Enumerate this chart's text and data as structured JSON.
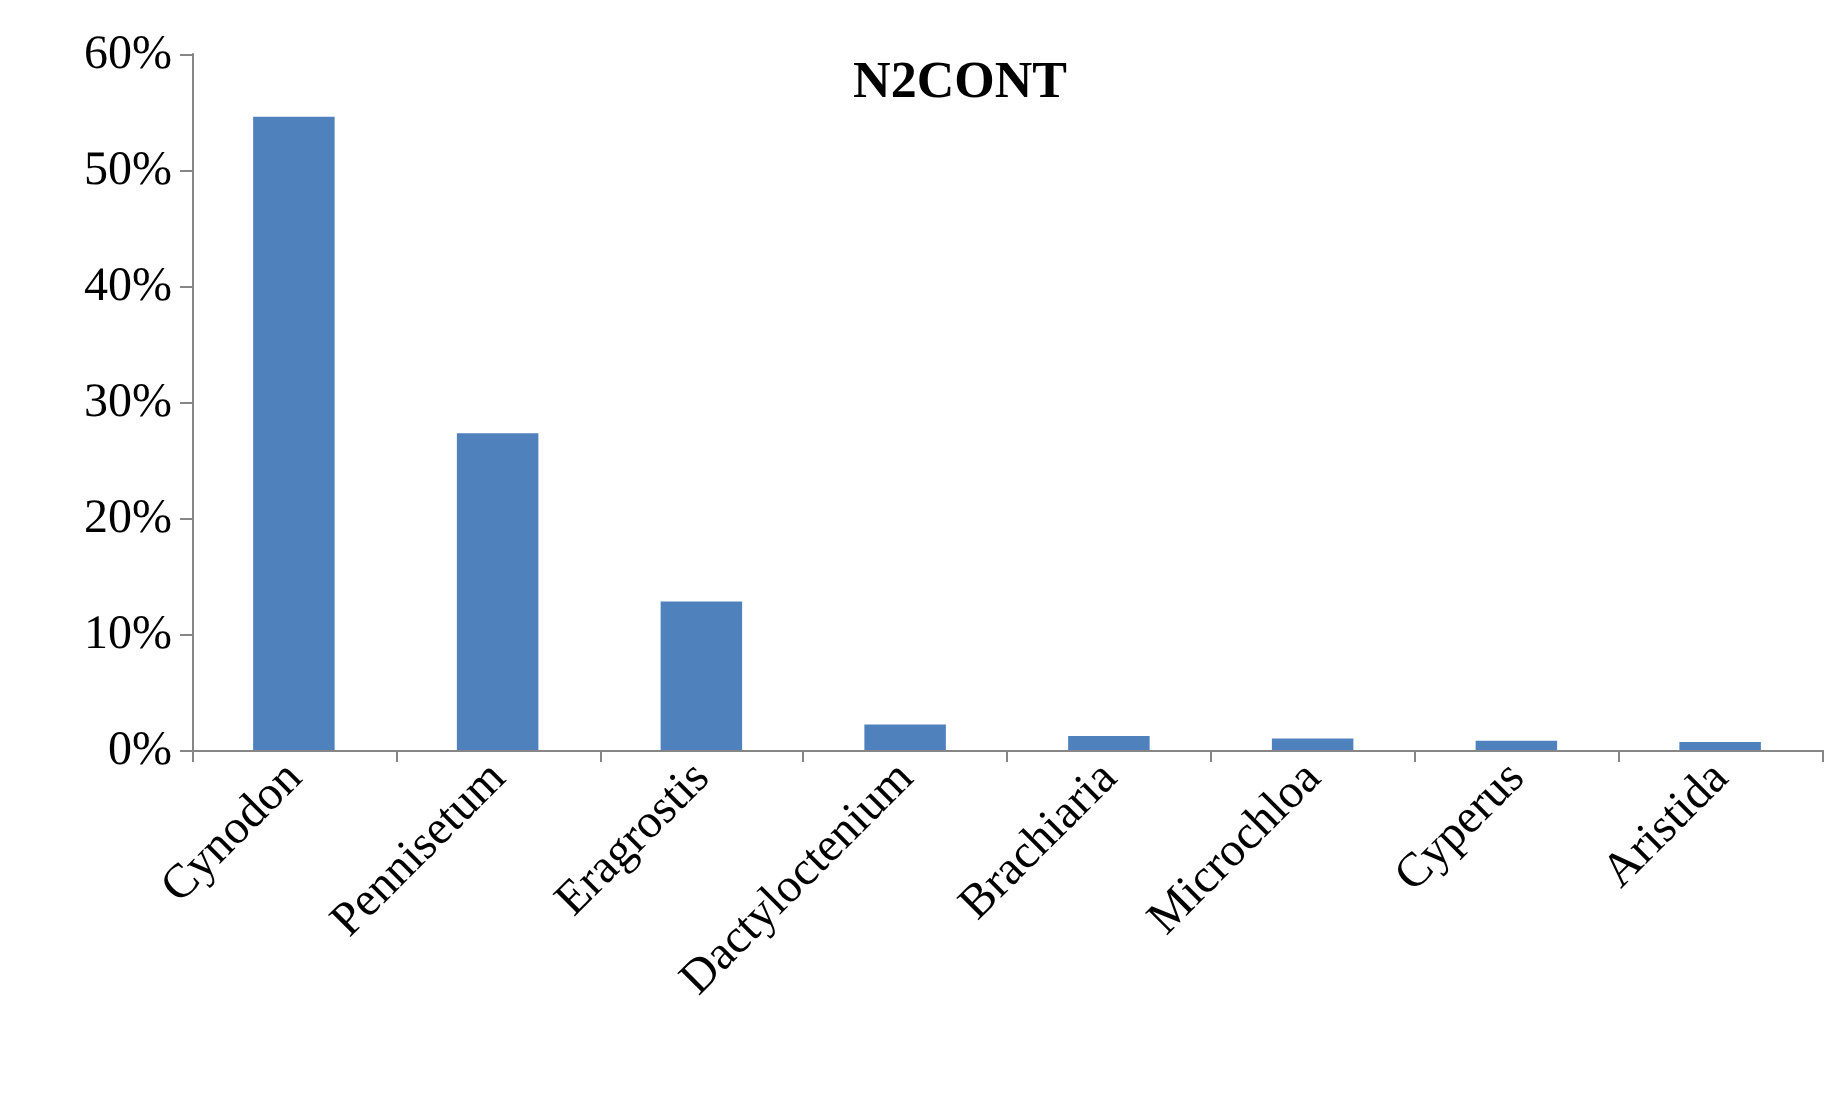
{
  "chart_data": {
    "type": "bar",
    "title": "N2CONT",
    "categories": [
      "Cynodon",
      "Pennisetum",
      "Eragrostis",
      "Dactyloctenium",
      "Brachiaria",
      "Microchloa",
      "Cyperus",
      "Aristida"
    ],
    "values": [
      54.6,
      27.3,
      12.8,
      2.2,
      1.2,
      1.0,
      0.8,
      0.7
    ],
    "color": "#4f81bd",
    "ylim": [
      0,
      60
    ],
    "yticks": [
      {
        "value": 0,
        "label": "0%"
      },
      {
        "value": 10,
        "label": "10%"
      },
      {
        "value": 20,
        "label": "20%"
      },
      {
        "value": 30,
        "label": "30%"
      },
      {
        "value": 40,
        "label": "40%"
      },
      {
        "value": 50,
        "label": "50%"
      },
      {
        "value": 60,
        "label": "60%"
      }
    ],
    "grid": false
  }
}
